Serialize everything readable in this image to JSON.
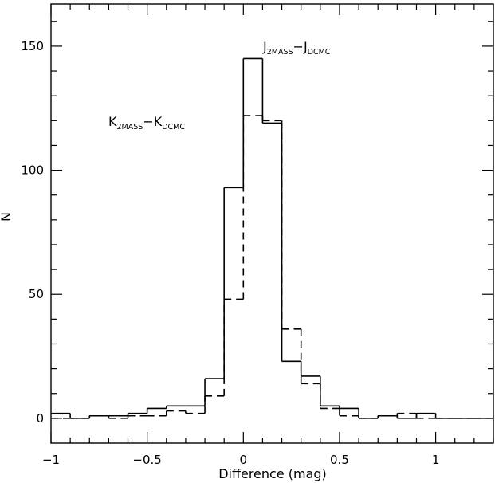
{
  "chart_data": {
    "type": "histogram",
    "xlabel": "Difference (mag)",
    "ylabel": "N",
    "xlim": [
      -1.0,
      1.3
    ],
    "ylim": [
      -10,
      167
    ],
    "x_ticks": [
      -1,
      -0.5,
      0,
      0.5,
      1
    ],
    "x_tick_labels": [
      "−1",
      "−0.5",
      "0",
      "0.5",
      "1"
    ],
    "y_ticks": [
      0,
      50,
      100,
      150
    ],
    "y_tick_labels": [
      "0",
      "50",
      "100",
      "150"
    ],
    "bin_edges": [
      -1.0,
      -0.9,
      -0.8,
      -0.7,
      -0.6,
      -0.5,
      -0.4,
      -0.3,
      -0.2,
      -0.1,
      0.0,
      0.1,
      0.2,
      0.3,
      0.4,
      0.5,
      0.6,
      0.7,
      0.8,
      0.9,
      1.0,
      1.1,
      1.2,
      1.3
    ],
    "grid": false,
    "series": [
      {
        "style": "solid",
        "label_main": "J",
        "label_sub1": "2MASS",
        "label_minus": "−",
        "label_main2": "J",
        "label_sub2": "DCMC",
        "counts": [
          2,
          0,
          1,
          1,
          2,
          4,
          5,
          5,
          16,
          93,
          145,
          119,
          23,
          17,
          5,
          4,
          0,
          1,
          0,
          2,
          0,
          0,
          0
        ]
      },
      {
        "style": "dashed",
        "label_main": "K",
        "label_sub1": "2MASS",
        "label_minus": "−",
        "label_main2": "K",
        "label_sub2": "DCMC",
        "counts": [
          0,
          0,
          1,
          0,
          1,
          1,
          3,
          2,
          9,
          48,
          122,
          120,
          36,
          14,
          4,
          1,
          0,
          1,
          2,
          0,
          0,
          0,
          0
        ]
      }
    ]
  }
}
